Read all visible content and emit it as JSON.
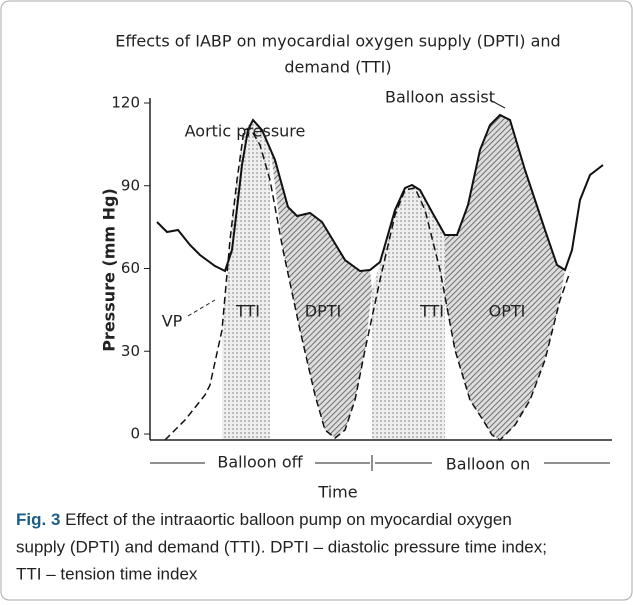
{
  "figure": {
    "title": [
      "Effects of IABP on myocardial oxygen supply (DPTI) and",
      "demand (TTI)"
    ],
    "y_axis_label": "Pressure (mm Hg)",
    "yticks": [
      0,
      30,
      60,
      90,
      120
    ],
    "ylim": [
      0,
      120
    ],
    "x_axis_label": "Time",
    "labels": {
      "aortic": "Aortic pressure",
      "assist": "Balloon assist",
      "vp": "VP",
      "tti1": "TTI",
      "dpti": "DPTI",
      "tti2": "TTI",
      "opti": "OPTI"
    },
    "phases": {
      "off": "Balloon off",
      "on": "Balloon on"
    }
  },
  "caption": {
    "label": "Fig. 3",
    "lines": [
      " Effect of the intraaortic balloon pump on myocardial oxygen",
      "supply (DPTI) and demand (TTI). DPTI – diastolic pressure time index;",
      "TTI – tension time index"
    ]
  }
}
